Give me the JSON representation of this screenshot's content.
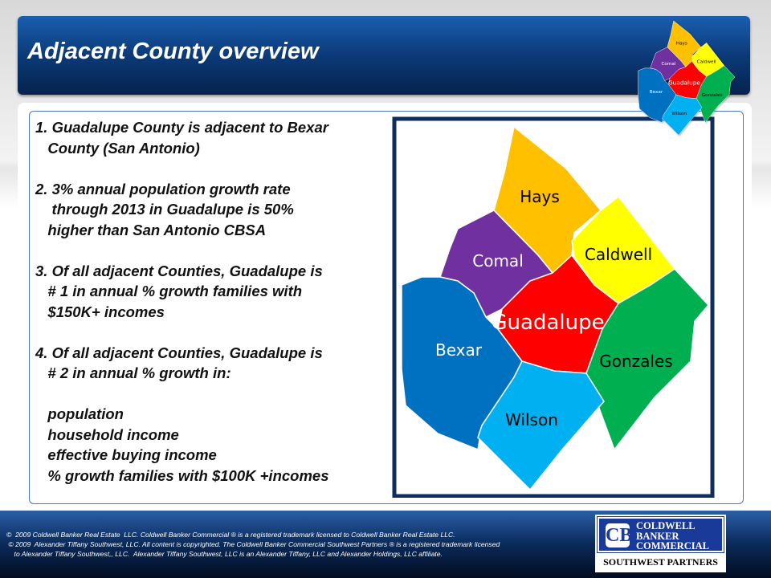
{
  "header": {
    "title": "Adjacent County overview"
  },
  "body_text": "1. Guadalupe County is adjacent to Bexar\n   County (San Antonio)\n\n2. 3% annual population growth rate\n    through 2013 in Guadalupe is 50%\n   higher than San Antonio CBSA\n\n3. Of all adjacent Counties, Guadalupe is\n   # 1 in annual % growth families with\n   $150K+ incomes\n\n4. Of all adjacent Counties, Guadalupe is\n   # 2 in annual % growth in:\n\n   population\n   household income\n   effective buying income\n   % growth families with $100K +incomes",
  "map": {
    "counties": [
      {
        "name": "Hays",
        "color": "#ffc000",
        "text_color": "#000000"
      },
      {
        "name": "Comal",
        "color": "#7030a0",
        "text_color": "#ffffff"
      },
      {
        "name": "Caldwell",
        "color": "#ffff00",
        "text_color": "#000000"
      },
      {
        "name": "Guadalupe",
        "color": "#ff0000",
        "text_color": "#ffffff"
      },
      {
        "name": "Gonzales",
        "color": "#00b050",
        "text_color": "#000000"
      },
      {
        "name": "Bexar",
        "color": "#0070c0",
        "text_color": "#ffffff"
      },
      {
        "name": "Wilson",
        "color": "#00b0f0",
        "text_color": "#000000"
      }
    ]
  },
  "footer": {
    "legal": "©  2009 Coldwell Banker Real Estate  LLC. Coldwell Banker Commercial ® is a registered trademark licensed to Coldwell Banker Real Estate LLC.\n © 2009  Alexander Tiffany Southwest, LLC. All content is copyrighted. The Coldwell Banker Commercial Southwest Partners ® is a registered trademark licensed\n    to Alexander Tiffany Southwest,, LLC.  Alexander Tiffany Southwest, LLC is an Alexander Tiffany, LLC and Alexander Holdings, LLC affiliate.",
    "logo_mark": "CB",
    "logo_line1": "COLDWELL",
    "logo_line2": "BANKER",
    "logo_line3": "COMMERCIAL",
    "logo_sub": "SOUTHWEST PARTNERS"
  }
}
